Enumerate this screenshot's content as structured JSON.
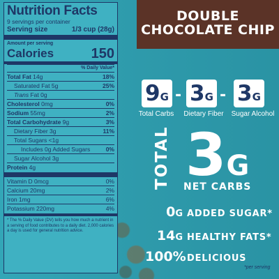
{
  "nutrition": {
    "title": "Nutrition Facts",
    "servings": "9 servings per container",
    "serving_size_label": "Serving size",
    "serving_size_value": "1/3 cup (28g)",
    "amount_per_serving": "Amount per serving",
    "calories_label": "Calories",
    "calories_value": "150",
    "dv_header": "% Daily Value*",
    "rows": [
      {
        "label": "Total Fat",
        "amount": "14g",
        "dv": "18%"
      },
      {
        "label": "Saturated Fat",
        "amount": "5g",
        "dv": "25%"
      },
      {
        "label": "Trans",
        "amount": "Fat 0g",
        "dv": ""
      },
      {
        "label": "Cholesterol",
        "amount": "0mg",
        "dv": "0%"
      },
      {
        "label": "Sodium",
        "amount": "55mg",
        "dv": "2%"
      },
      {
        "label": "Total Carbohydrate",
        "amount": "9g",
        "dv": "3%"
      },
      {
        "label": "Dietary Fiber",
        "amount": "3g",
        "dv": "11%"
      },
      {
        "label": "Total Sugars",
        "amount": "<1g",
        "dv": ""
      },
      {
        "label": "Includes 0g Added Sugars",
        "amount": "",
        "dv": "0%"
      },
      {
        "label": "Sugar Alcohol",
        "amount": "3g",
        "dv": ""
      },
      {
        "label": "Protein",
        "amount": "4g",
        "dv": ""
      }
    ],
    "vitamins": [
      {
        "label": "Vitamin D 0mcg",
        "dv": "0%"
      },
      {
        "label": "Calcium 20mg",
        "dv": "2%"
      },
      {
        "label": "Iron 1mg",
        "dv": "6%"
      },
      {
        "label": "Potassium 220mg",
        "dv": "4%"
      }
    ],
    "footnote": "* The % Daily Value (DV) tells you how much a nutrient in a serving of food contributes to a daily diet. 2,000 calories a day is used for general nutrition advice."
  },
  "flavor": {
    "line1": "DOUBLE",
    "line2": "CHOCOLATE CHIP"
  },
  "carbs": {
    "total": {
      "num": "9",
      "unit": "G",
      "label": "Total Carbs"
    },
    "fiber": {
      "num": "3",
      "unit": "G",
      "label": "Dietary Fiber"
    },
    "sugar_alcohol": {
      "num": "3",
      "unit": "G",
      "label": "Sugar Alcohol"
    },
    "dash": "-"
  },
  "net": {
    "total_word": "TOTAL",
    "num": "3",
    "unit": "G",
    "label": "NET CARBS"
  },
  "claims": [
    {
      "value": "0",
      "unit": "G",
      "text": "ADDED SUGAR*"
    },
    {
      "value": "14",
      "unit": "G",
      "text": "HEALTHY FATS*"
    },
    {
      "value": "100%",
      "unit": "",
      "text": "DELICIOUS"
    }
  ],
  "per_serving": "*per serving",
  "colors": {
    "background": "#2f9fb0",
    "navy": "#1e3766",
    "brown": "#5b3327",
    "white": "#ffffff"
  }
}
